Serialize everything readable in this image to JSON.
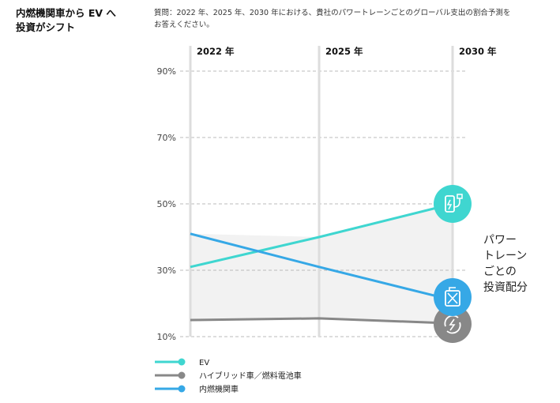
{
  "header": {
    "title_lines": [
      "内燃機関車から EV へ",
      "投資がシフト"
    ],
    "question_lines": [
      "質問：2022 年、2025 年、2030 年における、貴社のパワートレーンごとのグローバル支出の割合予測を",
      "お答えください。"
    ]
  },
  "side_label_lines": [
    "パワー",
    "トレーン",
    "ごとの",
    "投資配分"
  ],
  "colors": {
    "ev": "#3fd6d0",
    "hybrid": "#888888",
    "ice": "#36a8e6",
    "fill": "#f2f2f2",
    "grid": "#bbbbbb",
    "column": "#dddddd"
  },
  "icons": {
    "ev": "ev-charger-icon",
    "hybrid": "fuel-cell-icon",
    "ice": "fuel-can-icon"
  },
  "chart_data": {
    "type": "line",
    "x": [
      "2022 年",
      "2025 年",
      "2030 年"
    ],
    "yticks": [
      "90%",
      "70%",
      "50%",
      "30%",
      "10%"
    ],
    "ytick_values": [
      90,
      70,
      50,
      30,
      10
    ],
    "ylim": [
      10,
      90
    ],
    "grid": "dashed-horizontal",
    "series": [
      {
        "name": "EV",
        "key": "ev",
        "values": [
          31,
          40,
          50
        ]
      },
      {
        "name": "ハイブリッド車／燃料電池車",
        "key": "hybrid",
        "values": [
          15,
          15.5,
          14
        ]
      },
      {
        "name": "内燃機関車",
        "key": "ice",
        "values": [
          41,
          31,
          21
        ]
      }
    ]
  }
}
